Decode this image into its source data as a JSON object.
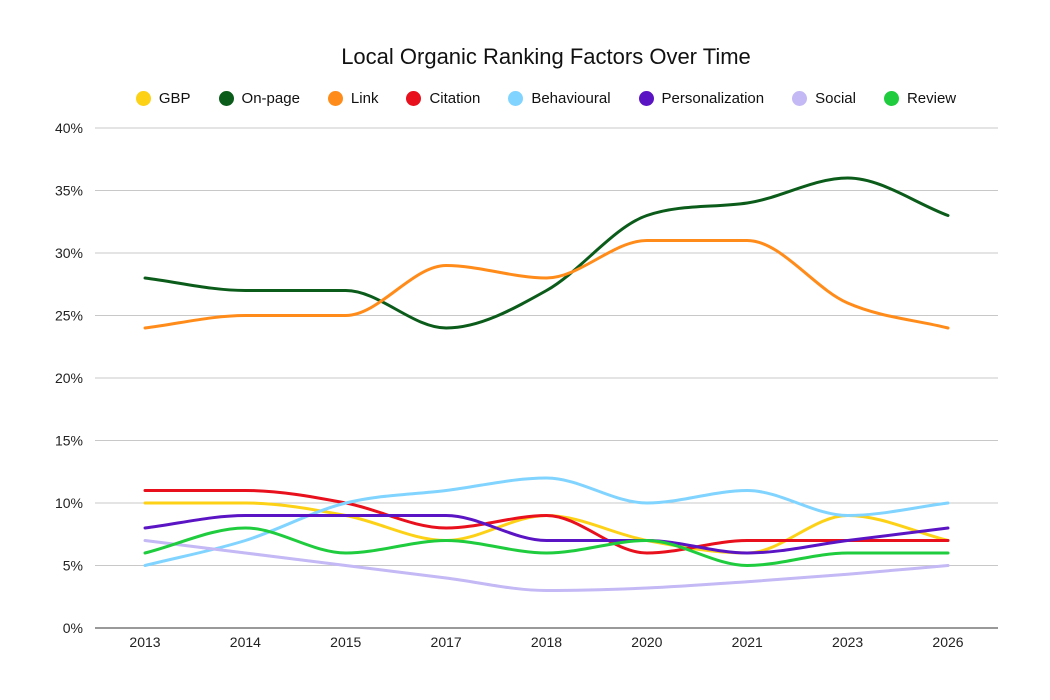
{
  "chart_data": {
    "type": "line",
    "title": "Local Organic Ranking Factors Over Time",
    "xlabel": "",
    "ylabel": "",
    "categories": [
      "2013",
      "2014",
      "2015",
      "2017",
      "2018",
      "2020",
      "2021",
      "2023",
      "2026"
    ],
    "ylim": [
      0,
      40
    ],
    "yticks": [
      "0%",
      "5%",
      "10%",
      "15%",
      "20%",
      "25%",
      "30%",
      "35%",
      "40%"
    ],
    "grid": "horizontal",
    "legend_position": "top",
    "series": [
      {
        "name": "GBP",
        "color": "#fcd116",
        "values": [
          10,
          10,
          9,
          7,
          9,
          7,
          6,
          9,
          7
        ]
      },
      {
        "name": "On-page",
        "color": "#0b5c1a",
        "values": [
          28,
          27,
          27,
          24,
          27,
          33,
          34,
          36,
          33
        ]
      },
      {
        "name": "Link",
        "color": "#ff8c1a",
        "values": [
          24,
          25,
          25,
          29,
          28,
          31,
          31,
          26,
          24
        ]
      },
      {
        "name": "Citation",
        "color": "#e8101c",
        "values": [
          11,
          11,
          10,
          8,
          9,
          6,
          7,
          7,
          7
        ]
      },
      {
        "name": "Behavioural",
        "color": "#80d4ff",
        "values": [
          5,
          7,
          10,
          11,
          12,
          10,
          11,
          9,
          10
        ]
      },
      {
        "name": "Personalization",
        "color": "#5b14c4",
        "values": [
          8,
          9,
          9,
          9,
          7,
          7,
          6,
          7,
          8
        ]
      },
      {
        "name": "Social",
        "color": "#c4b8f5",
        "values": [
          7,
          6,
          5,
          4,
          3,
          3.2,
          3.7,
          4.3,
          5
        ]
      },
      {
        "name": "Review",
        "color": "#1fcc3e",
        "values": [
          6,
          8,
          6,
          7,
          6,
          7,
          5,
          6,
          6
        ]
      }
    ]
  }
}
